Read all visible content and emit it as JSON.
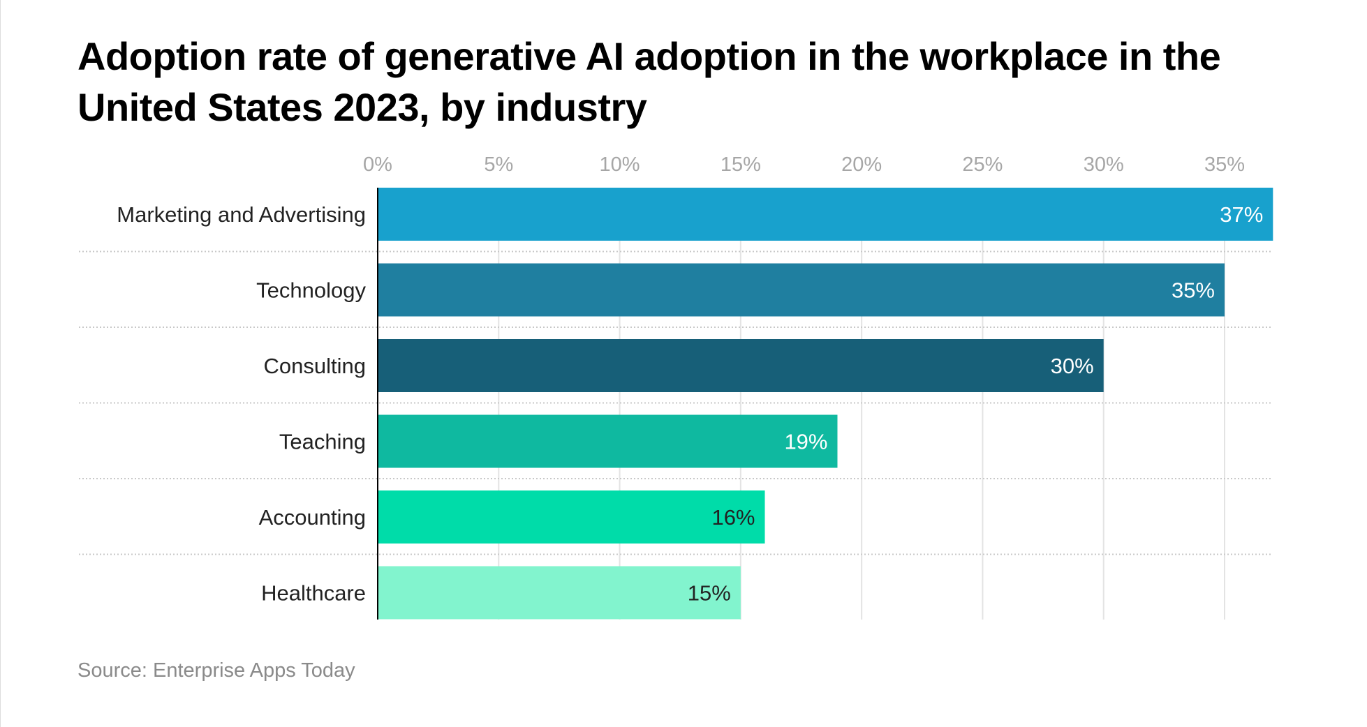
{
  "chart_data": {
    "type": "bar",
    "orientation": "horizontal",
    "title": "Adoption rate of generative AI adoption in the workplace in the United States 2023, by industry",
    "categories": [
      "Marketing and Advertising",
      "Technology",
      "Consulting",
      "Teaching",
      "Accounting",
      "Healthcare"
    ],
    "values": [
      37,
      35,
      30,
      19,
      16,
      15
    ],
    "data_labels": [
      "37%",
      "35%",
      "30%",
      "19%",
      "16%",
      "15%"
    ],
    "bar_colors": [
      "#18a1cd",
      "#1f7fa0",
      "#175f78",
      "#0fb9a0",
      "#00dca9",
      "#82f4ce"
    ],
    "label_colors": [
      "#ffffff",
      "#ffffff",
      "#ffffff",
      "#ffffff",
      "#222222",
      "#222222"
    ],
    "x_ticks": [
      0,
      5,
      10,
      15,
      20,
      25,
      30,
      35
    ],
    "x_tick_labels": [
      "0%",
      "5%",
      "10%",
      "15%",
      "20%",
      "25%",
      "30%",
      "35%"
    ],
    "xlim": [
      0,
      37
    ],
    "axis_position": "top",
    "grid": true,
    "xlabel": "",
    "ylabel": "",
    "source": "Source: Enterprise Apps Today"
  }
}
